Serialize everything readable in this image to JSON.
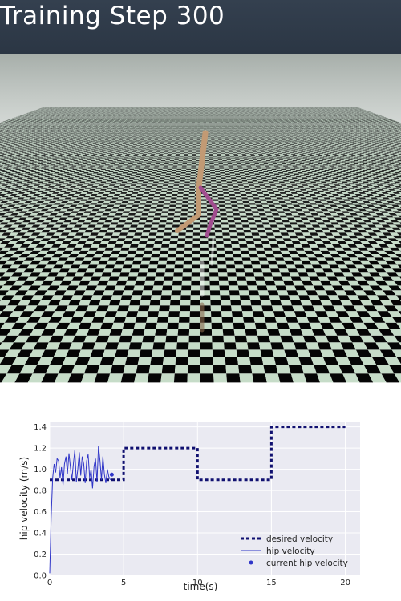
{
  "header": {
    "title": "Training Step 300"
  },
  "chart_data": {
    "type": "line",
    "xlabel": "time(s)",
    "ylabel": "hip velocity (m/s)",
    "xlim": [
      0,
      21
    ],
    "ylim": [
      0,
      1.45
    ],
    "xticks": [
      "0",
      "5",
      "10",
      "15",
      "20"
    ],
    "yticks": [
      "0.0",
      "0.2",
      "0.4",
      "0.6",
      "0.8",
      "1.0",
      "1.2",
      "1.4"
    ],
    "grid": true,
    "legend_position": "bottom-right",
    "colors": {
      "desired": "#101070",
      "hip": "#2f35c8",
      "current": "#2f35c8",
      "plot_bg": "#eaeaf2"
    },
    "series": [
      {
        "name": "desired velocity",
        "style": "dashed-step",
        "x": [
          0,
          5,
          5,
          10,
          10,
          15,
          15,
          20
        ],
        "y": [
          0.9,
          0.9,
          1.2,
          1.2,
          0.9,
          0.9,
          1.4,
          1.4
        ]
      },
      {
        "name": "hip velocity",
        "style": "line",
        "x": [
          0,
          0.1,
          0.2,
          0.3,
          0.4,
          0.5,
          0.6,
          0.7,
          0.8,
          0.9,
          1.0,
          1.1,
          1.2,
          1.3,
          1.4,
          1.5,
          1.6,
          1.7,
          1.8,
          1.9,
          2.0,
          2.1,
          2.2,
          2.3,
          2.4,
          2.5,
          2.6,
          2.7,
          2.8,
          2.9,
          3.0,
          3.1,
          3.2,
          3.3,
          3.4,
          3.5,
          3.6,
          3.7,
          3.8,
          3.9,
          4.0,
          4.1
        ],
        "y": [
          0.02,
          0.55,
          0.92,
          1.05,
          0.97,
          1.1,
          1.08,
          0.92,
          1.02,
          0.85,
          1.05,
          1.12,
          0.96,
          1.15,
          1.02,
          0.9,
          1.05,
          1.18,
          0.88,
          1.0,
          1.16,
          0.94,
          1.12,
          1.05,
          0.87,
          1.08,
          1.14,
          0.92,
          1.0,
          0.82,
          1.03,
          1.1,
          0.88,
          1.22,
          1.08,
          0.9,
          1.12,
          0.95,
          0.87,
          1.0,
          0.93,
          0.9
        ]
      },
      {
        "name": "current hip velocity",
        "style": "point",
        "x": [
          4.2
        ],
        "y": [
          0.95
        ]
      }
    ]
  }
}
